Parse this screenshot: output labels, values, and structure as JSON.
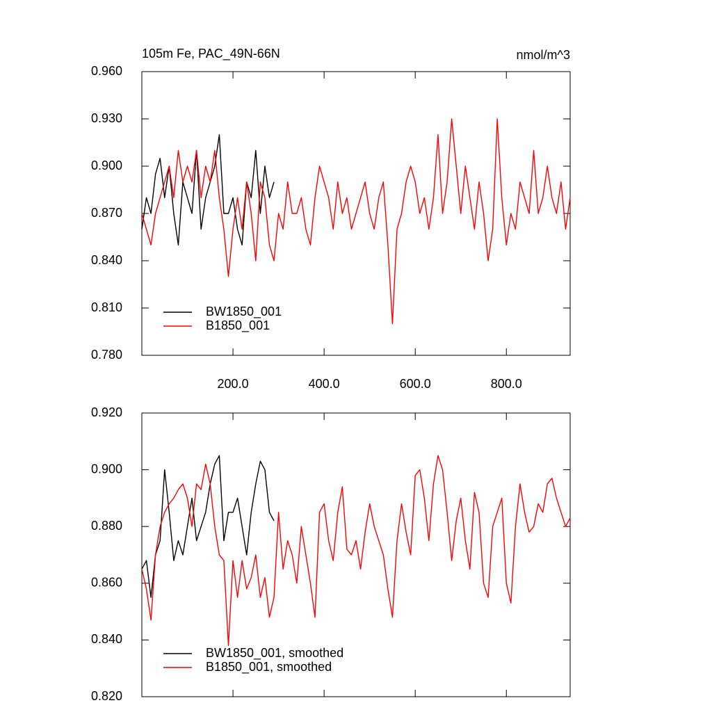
{
  "chart_data": [
    {
      "type": "line",
      "title": "105m Fe, PAC_49N-66N",
      "units": "nmol/m^3",
      "xlim": [
        0,
        940
      ],
      "xticks": [
        {
          "value": 200,
          "label": "200.0"
        },
        {
          "value": 400,
          "label": "400.0"
        },
        {
          "value": 600,
          "label": "600.0"
        },
        {
          "value": 800,
          "label": "800.0"
        }
      ],
      "ylim": [
        0.78,
        0.96
      ],
      "yticks": [
        {
          "value": 0.78,
          "label": "0.780"
        },
        {
          "value": 0.81,
          "label": "0.810"
        },
        {
          "value": 0.84,
          "label": "0.840"
        },
        {
          "value": 0.87,
          "label": "0.870"
        },
        {
          "value": 0.9,
          "label": "0.900"
        },
        {
          "value": 0.93,
          "label": "0.930"
        },
        {
          "value": 0.96,
          "label": "0.960"
        }
      ],
      "legend": "lower left",
      "series": [
        {
          "name": "BW1850_001",
          "color": "#000000",
          "x": [
            0,
            10,
            20,
            30,
            40,
            50,
            60,
            70,
            80,
            90,
            100,
            110,
            120,
            130,
            140,
            150,
            160,
            170,
            180,
            190,
            200,
            210,
            220,
            230,
            240,
            250,
            260,
            270,
            280,
            290
          ],
          "values": [
            0.86,
            0.88,
            0.87,
            0.895,
            0.905,
            0.88,
            0.9,
            0.87,
            0.85,
            0.89,
            0.88,
            0.87,
            0.91,
            0.86,
            0.88,
            0.89,
            0.9,
            0.92,
            0.87,
            0.87,
            0.88,
            0.86,
            0.85,
            0.89,
            0.88,
            0.91,
            0.87,
            0.9,
            0.88,
            0.89
          ]
        },
        {
          "name": "B1850_001",
          "color": "#ff0000",
          "x": [
            0,
            10,
            20,
            30,
            40,
            50,
            60,
            70,
            80,
            90,
            100,
            110,
            120,
            130,
            140,
            150,
            160,
            170,
            180,
            190,
            200,
            210,
            220,
            230,
            240,
            250,
            260,
            270,
            280,
            290,
            300,
            310,
            320,
            330,
            340,
            350,
            360,
            370,
            380,
            390,
            400,
            410,
            420,
            430,
            440,
            450,
            460,
            470,
            480,
            490,
            500,
            510,
            520,
            530,
            540,
            550,
            560,
            570,
            580,
            590,
            600,
            610,
            620,
            630,
            640,
            650,
            660,
            670,
            680,
            690,
            700,
            710,
            720,
            730,
            740,
            750,
            760,
            770,
            780,
            790,
            800,
            810,
            820,
            830,
            840,
            850,
            860,
            870,
            880,
            890,
            900,
            910,
            920,
            930,
            940
          ],
          "values": [
            0.87,
            0.86,
            0.85,
            0.87,
            0.88,
            0.89,
            0.9,
            0.88,
            0.91,
            0.89,
            0.9,
            0.89,
            0.91,
            0.88,
            0.9,
            0.89,
            0.91,
            0.88,
            0.86,
            0.83,
            0.86,
            0.88,
            0.86,
            0.89,
            0.87,
            0.84,
            0.89,
            0.88,
            0.85,
            0.84,
            0.87,
            0.86,
            0.89,
            0.87,
            0.87,
            0.88,
            0.86,
            0.85,
            0.88,
            0.9,
            0.89,
            0.88,
            0.86,
            0.89,
            0.87,
            0.88,
            0.86,
            0.87,
            0.88,
            0.89,
            0.87,
            0.86,
            0.88,
            0.89,
            0.85,
            0.8,
            0.86,
            0.87,
            0.89,
            0.9,
            0.89,
            0.87,
            0.88,
            0.86,
            0.88,
            0.92,
            0.87,
            0.89,
            0.93,
            0.9,
            0.87,
            0.9,
            0.88,
            0.86,
            0.89,
            0.87,
            0.84,
            0.86,
            0.93,
            0.88,
            0.85,
            0.87,
            0.86,
            0.89,
            0.88,
            0.87,
            0.91,
            0.87,
            0.88,
            0.9,
            0.88,
            0.87,
            0.89,
            0.86,
            0.88
          ]
        }
      ]
    },
    {
      "type": "line",
      "xlim": [
        0,
        940
      ],
      "xticks": [
        200,
        400,
        600,
        800
      ],
      "ylim": [
        0.82,
        0.92
      ],
      "yticks": [
        {
          "value": 0.82,
          "label": "0.820"
        },
        {
          "value": 0.84,
          "label": "0.840"
        },
        {
          "value": 0.86,
          "label": "0.860"
        },
        {
          "value": 0.88,
          "label": "0.880"
        },
        {
          "value": 0.9,
          "label": "0.900"
        },
        {
          "value": 0.92,
          "label": "0.920"
        }
      ],
      "legend": "lower left",
      "series": [
        {
          "name": "BW1850_001, smoothed",
          "color": "#000000",
          "x": [
            0,
            10,
            20,
            30,
            40,
            50,
            60,
            70,
            80,
            90,
            100,
            110,
            120,
            130,
            140,
            150,
            160,
            170,
            180,
            190,
            200,
            210,
            220,
            230,
            240,
            250,
            260,
            270,
            280,
            290
          ],
          "values": [
            0.865,
            0.868,
            0.855,
            0.87,
            0.875,
            0.9,
            0.885,
            0.868,
            0.875,
            0.87,
            0.88,
            0.89,
            0.875,
            0.88,
            0.885,
            0.895,
            0.902,
            0.905,
            0.875,
            0.885,
            0.885,
            0.89,
            0.88,
            0.87,
            0.885,
            0.895,
            0.903,
            0.9,
            0.885,
            0.882
          ]
        },
        {
          "name": "B1850_001, smoothed",
          "color": "#ff0000",
          "x": [
            0,
            10,
            20,
            30,
            40,
            50,
            60,
            70,
            80,
            90,
            100,
            110,
            120,
            130,
            140,
            150,
            160,
            170,
            180,
            190,
            200,
            210,
            220,
            230,
            240,
            250,
            260,
            270,
            280,
            290,
            300,
            310,
            320,
            330,
            340,
            350,
            360,
            370,
            380,
            390,
            400,
            410,
            420,
            430,
            440,
            450,
            460,
            470,
            480,
            490,
            500,
            510,
            520,
            530,
            540,
            550,
            560,
            570,
            580,
            590,
            600,
            610,
            620,
            630,
            640,
            650,
            660,
            670,
            680,
            690,
            700,
            710,
            720,
            730,
            740,
            750,
            760,
            770,
            780,
            790,
            800,
            810,
            820,
            830,
            840,
            850,
            860,
            870,
            880,
            890,
            900,
            910,
            920,
            930,
            940
          ],
          "values": [
            0.865,
            0.858,
            0.847,
            0.87,
            0.88,
            0.885,
            0.888,
            0.89,
            0.893,
            0.895,
            0.89,
            0.88,
            0.895,
            0.893,
            0.902,
            0.895,
            0.88,
            0.87,
            0.868,
            0.838,
            0.868,
            0.855,
            0.868,
            0.858,
            0.862,
            0.87,
            0.855,
            0.862,
            0.848,
            0.855,
            0.885,
            0.865,
            0.875,
            0.87,
            0.86,
            0.88,
            0.87,
            0.86,
            0.848,
            0.885,
            0.888,
            0.875,
            0.868,
            0.885,
            0.894,
            0.872,
            0.87,
            0.875,
            0.865,
            0.878,
            0.888,
            0.88,
            0.875,
            0.87,
            0.858,
            0.848,
            0.875,
            0.888,
            0.878,
            0.87,
            0.898,
            0.9,
            0.89,
            0.875,
            0.895,
            0.905,
            0.9,
            0.885,
            0.868,
            0.882,
            0.89,
            0.875,
            0.865,
            0.892,
            0.885,
            0.86,
            0.855,
            0.88,
            0.885,
            0.89,
            0.86,
            0.853,
            0.88,
            0.895,
            0.885,
            0.878,
            0.88,
            0.888,
            0.885,
            0.895,
            0.897,
            0.89,
            0.885,
            0.88,
            0.883
          ]
        }
      ]
    }
  ]
}
